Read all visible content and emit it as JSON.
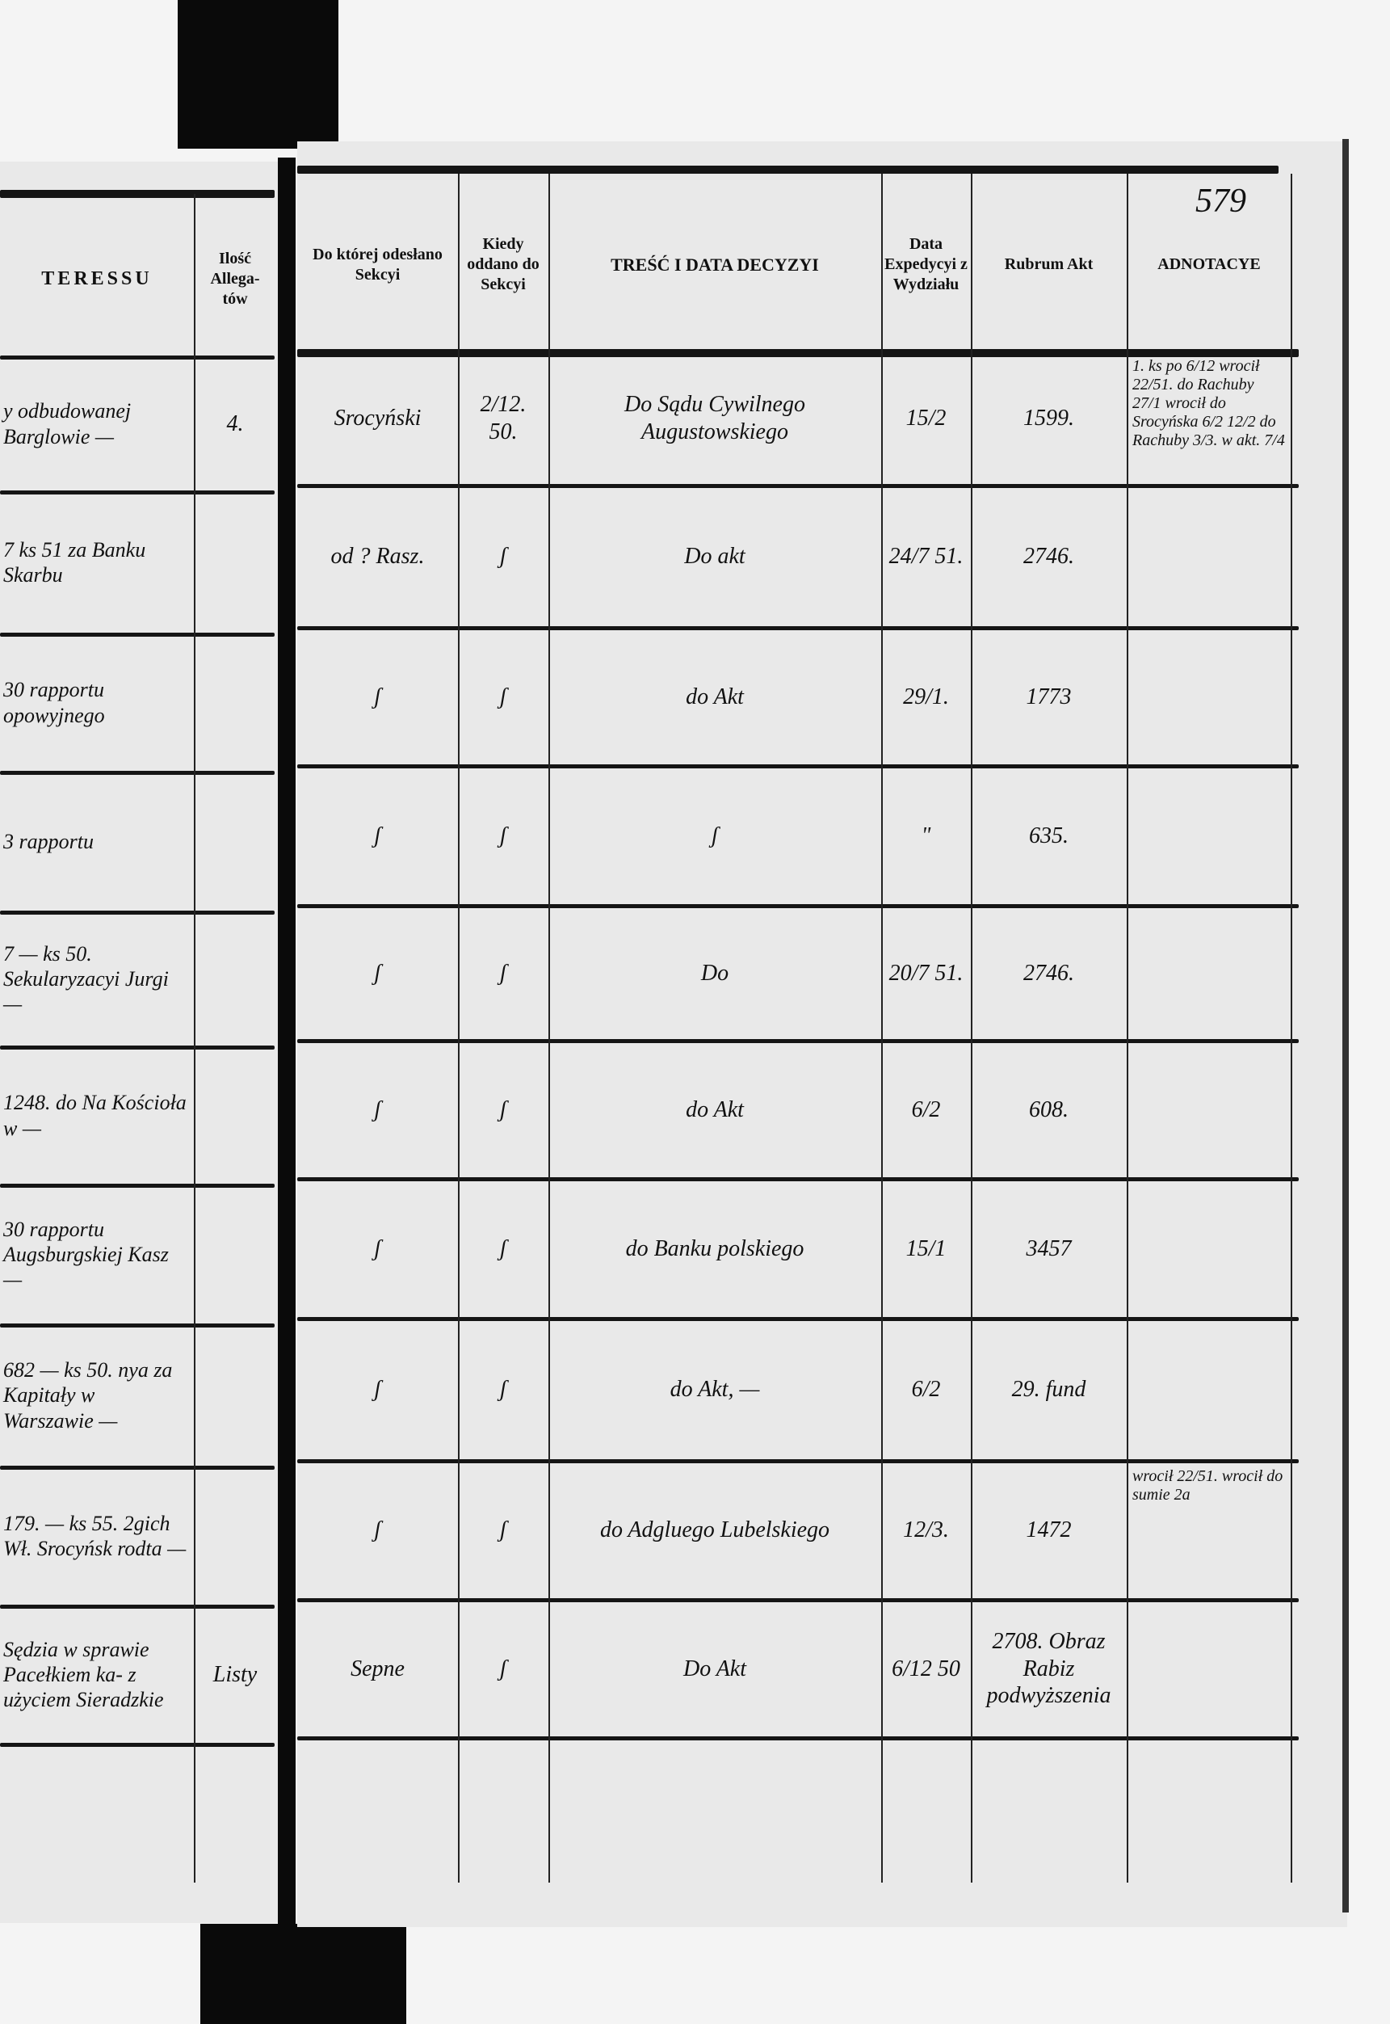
{
  "page_number": "579",
  "left_page": {
    "headers": {
      "interest_fragment": "TERESSU",
      "allegata": "Ilość Allega-tów"
    },
    "rows": [
      {
        "text": "y odbudowanej Barglowie —",
        "count": "4."
      },
      {
        "text": "7 ks 51 za Banku Skarbu",
        "count": ""
      },
      {
        "text": "30 rapportu opowyjnego",
        "count": ""
      },
      {
        "text": "3 rapportu",
        "count": ""
      },
      {
        "text": "7 — ks 50. Sekularyzacyi Jurgi —",
        "count": ""
      },
      {
        "text": "1248. do Na Kościoła w —",
        "count": ""
      },
      {
        "text": "30 rapportu Augsburgskiej Kasz —",
        "count": ""
      },
      {
        "text": "682 — ks 50. nya za Kapitały w Warszawie —",
        "count": ""
      },
      {
        "text": "179. — ks 55. 2gich Wł. Srocyńsk rodta —",
        "count": ""
      },
      {
        "text": "Sędzia w sprawie Pacełkiem ka- z użyciem Sieradzkie",
        "count": "Listy"
      }
    ]
  },
  "right_page": {
    "headers": {
      "section": "Do której odesłano Sekcyi",
      "when": "Kiedy oddano do Sekcyi",
      "decision": "TREŚĆ I DATA DECYZYI",
      "expedition": "Data Expedycyi z Wydziału",
      "rubrum": "Rubrum Akt",
      "annotations": "ADNOTACYE"
    },
    "rows": [
      {
        "section": "Srocyński",
        "when": "2/12. 50.",
        "decision": "Do Sądu Cywilnego Augustowskiego",
        "expedition": "15/2",
        "rubrum": "1599.",
        "annotations": "1. ks po 6/12 wrocił 22/51. do Rachuby 27/1 wrocił do Srocyńska 6/2 12/2 do Rachuby 3/3. w akt. 7/4"
      },
      {
        "section": "od ? Rasz.",
        "when": "ʃ",
        "decision": "Do akt",
        "expedition": "24/7 51.",
        "rubrum": "2746.",
        "annotations": ""
      },
      {
        "section": "ʃ",
        "when": "ʃ",
        "decision": "do Akt",
        "expedition": "29/1.",
        "rubrum": "1773",
        "annotations": ""
      },
      {
        "section": "ʃ",
        "when": "ʃ",
        "decision": "ʃ",
        "expedition": "\"",
        "rubrum": "635.",
        "annotations": ""
      },
      {
        "section": "ʃ",
        "when": "ʃ",
        "decision": "Do",
        "expedition": "20/7 51.",
        "rubrum": "2746.",
        "annotations": ""
      },
      {
        "section": "ʃ",
        "when": "ʃ",
        "decision": "do Akt",
        "expedition": "6/2",
        "rubrum": "608.",
        "annotations": ""
      },
      {
        "section": "ʃ",
        "when": "ʃ",
        "decision": "do Banku polskiego",
        "expedition": "15/1",
        "rubrum": "3457",
        "annotations": ""
      },
      {
        "section": "ʃ",
        "when": "ʃ",
        "decision": "do Akt, —",
        "expedition": "6/2",
        "rubrum": "29. fund",
        "annotations": ""
      },
      {
        "section": "ʃ",
        "when": "ʃ",
        "decision": "do Adgluego Lubelskiego",
        "expedition": "12/3.",
        "rubrum": "1472",
        "annotations": "wrocił 22/51. wrocił do sumie 2a"
      },
      {
        "section": "Sepne",
        "when": "ʃ",
        "decision": "Do Akt",
        "expedition": "6/12 50",
        "rubrum": "2708. Obraz Rabiz podwyższenia",
        "annotations": ""
      }
    ]
  }
}
